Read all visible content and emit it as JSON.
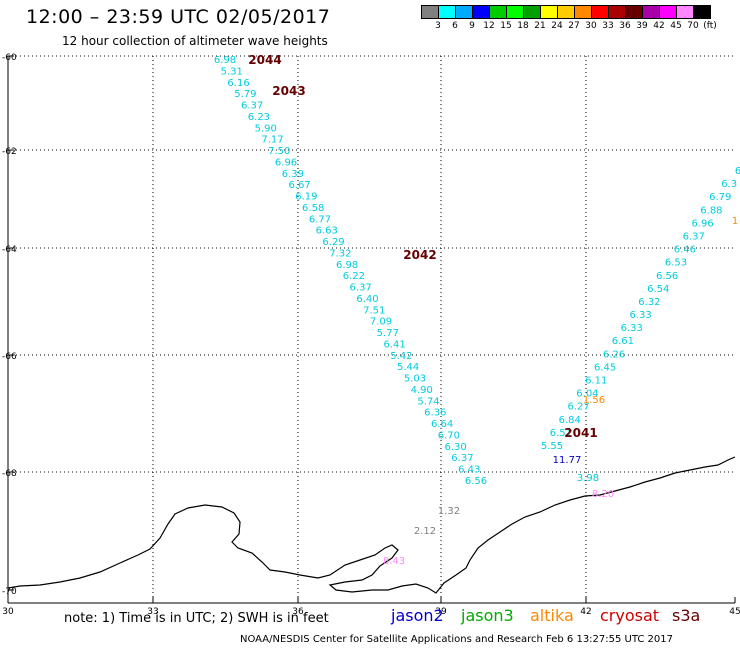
{
  "header": {
    "title": "12:00 – 23:59 UTC 02/05/2017",
    "subtitle": "12 hour collection of altimeter wave heights"
  },
  "colorbar": {
    "colors": [
      "#808080",
      "#00ffff",
      "#00aaff",
      "#0000ff",
      "#00cc00",
      "#00ff00",
      "#00a000",
      "#ffff00",
      "#ffcc00",
      "#ff8800",
      "#ff0000",
      "#aa0000",
      "#660000",
      "#aa00aa",
      "#ff00ff",
      "#ff88ff",
      "#000000"
    ],
    "labels": [
      "3",
      "6",
      "9",
      "12",
      "15",
      "18",
      "21",
      "24",
      "27",
      "30",
      "33",
      "36",
      "39",
      "42",
      "45",
      "70",
      "(ft)"
    ]
  },
  "axes": {
    "lat_labels": [
      "-60",
      "-62",
      "-64",
      "-66",
      "-68",
      "-70"
    ],
    "lon_labels": [
      "30",
      "33",
      "36",
      "39",
      "42",
      "45"
    ]
  },
  "track_a": {
    "color": "#00ccdd",
    "values": [
      "6.98",
      "5.31",
      "6.16",
      "5.79",
      "6.37",
      "6.23",
      "5.90",
      "7.17",
      "7.50",
      "6.96",
      "6.39",
      "6.67",
      "6.19",
      "6.58",
      "6.77",
      "6.63",
      "6.29",
      "7.32",
      "6.98",
      "6.22",
      "6.37",
      "6.40",
      "7.51",
      "7.09",
      "5.77",
      "6.41",
      "5.42",
      "5.44",
      "5.03",
      "4.90",
      "5.74",
      "6.36",
      "6.64",
      "6.70",
      "6.30",
      "6.37",
      "6.43",
      "6.56"
    ]
  },
  "track_b": {
    "color": "#00ccdd",
    "values": [
      "5.55",
      "6.51",
      "6.84",
      "6.27",
      "6.04",
      "6.11",
      "6.45",
      "6.26",
      "6.61",
      "6.33",
      "6.33",
      "6.32",
      "6.54",
      "6.56",
      "6.53",
      "6.46",
      "6.37",
      "6.96",
      "6.88",
      "6.79",
      "6.3",
      "6"
    ]
  },
  "special_values": [
    {
      "text": "11.77",
      "color": "#0000cc"
    },
    {
      "text": "3.98",
      "color": "#00ccdd"
    },
    {
      "text": "8.20",
      "color": "#ff88ff"
    },
    {
      "text": "1.32",
      "color": "#808080"
    },
    {
      "text": "2.12",
      "color": "#808080"
    },
    {
      "text": "8.43",
      "color": "#ff88ff"
    },
    {
      "text": "1.56",
      "color": "#ff8800"
    },
    {
      "text": "1",
      "color": "#ff8800"
    }
  ],
  "pass_labels": [
    {
      "text": "2044",
      "color": "#660000"
    },
    {
      "text": "2043",
      "color": "#660000"
    },
    {
      "text": "2042",
      "color": "#660000"
    },
    {
      "text": "2041",
      "color": "#660000"
    }
  ],
  "footer": {
    "note": "note: 1) Time is in UTC; 2) SWH is in feet",
    "satellites": [
      {
        "name": "jason2",
        "color": "#0000cc"
      },
      {
        "name": "jason3",
        "color": "#00aa00"
      },
      {
        "name": "altika",
        "color": "#ff8800"
      },
      {
        "name": "cryosat",
        "color": "#cc0000"
      },
      {
        "name": "s3a",
        "color": "#660000"
      }
    ],
    "credit": "NOAA/NESDIS Center for Satellite Applications and Research     Feb  6 13:27:55 UTC 2017"
  }
}
